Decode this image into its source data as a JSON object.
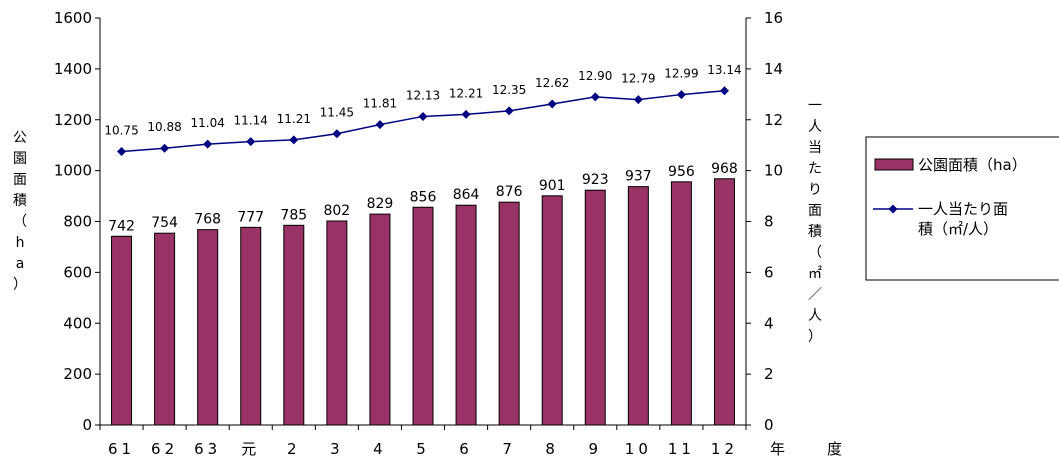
{
  "chart_data": {
    "type": "bar+line",
    "categories": [
      "61",
      "62",
      "63",
      "元",
      "2",
      "3",
      "4",
      "5",
      "6",
      "7",
      "8",
      "9",
      "10",
      "11",
      "12"
    ],
    "x_suffix": "年　　度",
    "series": [
      {
        "name": "公園面積（ha）",
        "type": "bar",
        "axis": "left",
        "color": "#993366",
        "values": [
          742,
          754,
          768,
          777,
          785,
          802,
          829,
          856,
          864,
          876,
          901,
          923,
          937,
          956,
          968
        ]
      },
      {
        "name": "一人当たり面積（㎡/人）",
        "name_line1": "一人当たり面",
        "name_line2": "積（㎡/人）",
        "type": "line",
        "axis": "right",
        "color": "#000080",
        "values": [
          10.75,
          10.88,
          11.04,
          11.14,
          11.21,
          11.45,
          11.81,
          12.13,
          12.21,
          12.35,
          12.62,
          12.9,
          12.79,
          12.99,
          13.14
        ],
        "value_labels": [
          "10.75",
          "10.88",
          "11.04",
          "11.14",
          "11.21",
          "11.45",
          "11.81",
          "12.13",
          "12.21",
          "12.35",
          "12.62",
          "12.90",
          "12.79",
          "12.99",
          "13.14"
        ]
      }
    ],
    "y_left": {
      "label": "公園面積（ha）",
      "label_chars": [
        "公",
        "園",
        "面",
        "積",
        "（",
        "h",
        "a",
        "）"
      ],
      "min": 0,
      "max": 1600,
      "step": 200
    },
    "y_right": {
      "label": "一人当たり面積（㎡/人）",
      "label_chars": [
        "一",
        "人",
        "当",
        "た",
        "り",
        "面",
        "積",
        "（",
        "㎡",
        "／",
        "人",
        "）"
      ],
      "min": 0,
      "max": 16,
      "step": 2
    },
    "grid": false,
    "legend": "right"
  }
}
